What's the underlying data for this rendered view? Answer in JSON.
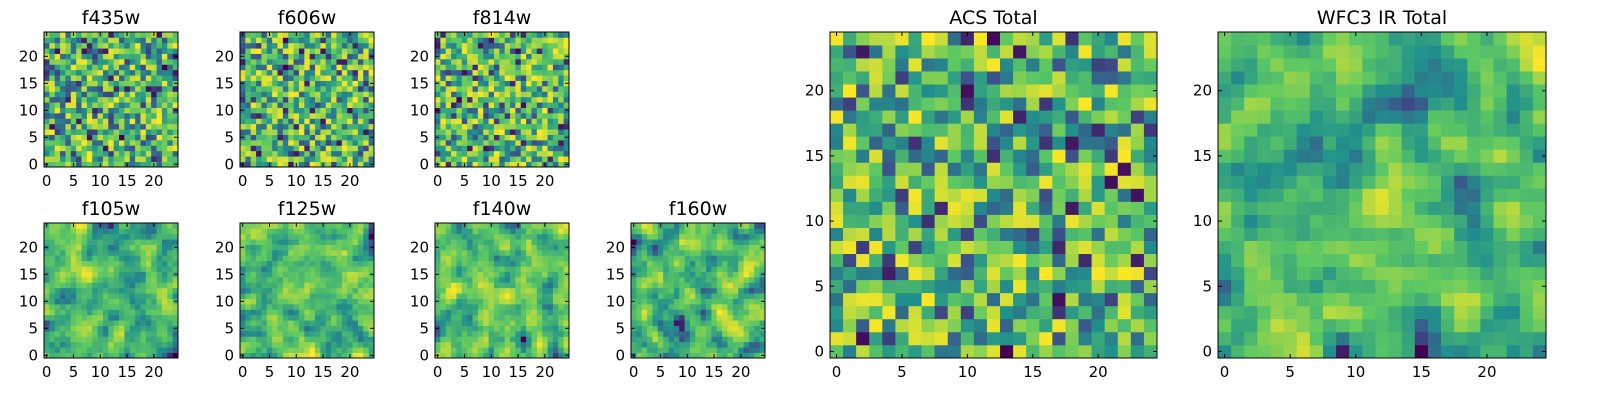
{
  "figure": {
    "colors": [
      "#440154",
      "#3b528b",
      "#21918c",
      "#5ec962",
      "#fde725"
    ],
    "colormap": "viridis"
  },
  "chart_data": [
    {
      "type": "heatmap",
      "title": "f435w",
      "grid_size": 25,
      "xlim": [
        0,
        25
      ],
      "ylim": [
        0,
        25
      ],
      "x_ticks": [
        "0",
        "5",
        "10",
        "15",
        "20"
      ],
      "y_ticks": [
        "0",
        "5",
        "10",
        "15",
        "20"
      ],
      "pattern": "pixel_noise",
      "seed": 11
    },
    {
      "type": "heatmap",
      "title": "f606w",
      "grid_size": 25,
      "xlim": [
        0,
        25
      ],
      "ylim": [
        0,
        25
      ],
      "x_ticks": [
        "0",
        "5",
        "10",
        "15",
        "20"
      ],
      "y_ticks": [
        "0",
        "5",
        "10",
        "15",
        "20"
      ],
      "pattern": "pixel_noise",
      "seed": 23
    },
    {
      "type": "heatmap",
      "title": "f814w",
      "grid_size": 25,
      "xlim": [
        0,
        25
      ],
      "ylim": [
        0,
        25
      ],
      "x_ticks": [
        "0",
        "5",
        "10",
        "15",
        "20"
      ],
      "y_ticks": [
        "0",
        "5",
        "10",
        "15",
        "20"
      ],
      "pattern": "pixel_noise",
      "seed": 37
    },
    {
      "type": "heatmap",
      "title": "f105w",
      "grid_size": 25,
      "xlim": [
        0,
        25
      ],
      "ylim": [
        0,
        25
      ],
      "x_ticks": [
        "0",
        "5",
        "10",
        "15",
        "20"
      ],
      "y_ticks": [
        "0",
        "5",
        "10",
        "15",
        "20"
      ],
      "pattern": "smooth_noise",
      "seed": 41
    },
    {
      "type": "heatmap",
      "title": "f125w",
      "grid_size": 25,
      "xlim": [
        0,
        25
      ],
      "ylim": [
        0,
        25
      ],
      "x_ticks": [
        "0",
        "5",
        "10",
        "15",
        "20"
      ],
      "y_ticks": [
        "0",
        "5",
        "10",
        "15",
        "20"
      ],
      "pattern": "smooth_noise",
      "seed": 53
    },
    {
      "type": "heatmap",
      "title": "f140w",
      "grid_size": 25,
      "xlim": [
        0,
        25
      ],
      "ylim": [
        0,
        25
      ],
      "x_ticks": [
        "0",
        "5",
        "10",
        "15",
        "20"
      ],
      "y_ticks": [
        "0",
        "5",
        "10",
        "15",
        "20"
      ],
      "pattern": "smooth_noise",
      "seed": 67
    },
    {
      "type": "heatmap",
      "title": "f160w",
      "grid_size": 25,
      "xlim": [
        0,
        25
      ],
      "ylim": [
        0,
        25
      ],
      "x_ticks": [
        "0",
        "5",
        "10",
        "15",
        "20"
      ],
      "y_ticks": [
        "0",
        "5",
        "10",
        "15",
        "20"
      ],
      "pattern": "smooth_noise",
      "seed": 79
    },
    {
      "type": "heatmap",
      "title": "ACS Total",
      "grid_size": 25,
      "xlim": [
        0,
        25
      ],
      "ylim": [
        0,
        25
      ],
      "x_ticks": [
        "0",
        "5",
        "10",
        "15",
        "20"
      ],
      "y_ticks": [
        "0",
        "5",
        "10",
        "15",
        "20"
      ],
      "pattern": "pixel_noise",
      "seed": 97
    },
    {
      "type": "heatmap",
      "title": "WFC3 IR Total",
      "grid_size": 25,
      "xlim": [
        0,
        25
      ],
      "ylim": [
        0,
        25
      ],
      "x_ticks": [
        "0",
        "5",
        "10",
        "15",
        "20"
      ],
      "y_ticks": [
        "0",
        "5",
        "10",
        "15",
        "20"
      ],
      "pattern": "smooth_noise",
      "seed": 101
    }
  ]
}
